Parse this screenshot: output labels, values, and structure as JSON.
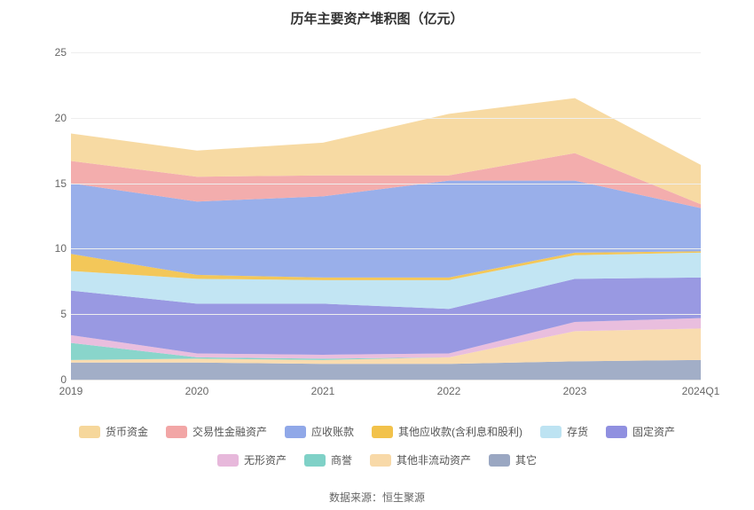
{
  "chart": {
    "type": "stacked-area",
    "title": "历年主要资产堆积图（亿元）",
    "title_fontsize": 15,
    "title_color": "#333333",
    "background_color": "#ffffff",
    "grid_color": "#eeeeee",
    "axis_label_fontsize": 12,
    "axis_label_color": "#666666",
    "ylim": [
      0,
      25
    ],
    "ytick_step": 5,
    "yticks": [
      0,
      5,
      10,
      15,
      20,
      25
    ],
    "categories": [
      "2019",
      "2020",
      "2021",
      "2022",
      "2023",
      "2024Q1"
    ],
    "series": [
      {
        "name": "其它",
        "color": "#9aa7c2",
        "values": [
          1.3,
          1.3,
          1.2,
          1.2,
          1.4,
          1.5
        ]
      },
      {
        "name": "其他非流动资产",
        "color": "#f8d9a8",
        "values": [
          0.2,
          0.3,
          0.3,
          0.5,
          2.3,
          2.4
        ]
      },
      {
        "name": "商誉",
        "color": "#7fd1c7",
        "values": [
          1.3,
          0.1,
          0.1,
          0.0,
          0.0,
          0.0
        ]
      },
      {
        "name": "无形资产",
        "color": "#e7b8db",
        "values": [
          0.6,
          0.3,
          0.3,
          0.3,
          0.7,
          0.8
        ]
      },
      {
        "name": "固定资产",
        "color": "#9090e0",
        "values": [
          3.4,
          3.8,
          3.9,
          3.4,
          3.3,
          3.1
        ]
      },
      {
        "name": "存货",
        "color": "#bde3f2",
        "values": [
          1.5,
          1.9,
          1.8,
          2.2,
          1.8,
          1.9
        ]
      },
      {
        "name": "其他应收款(含利息和股利)",
        "color": "#f2c24b",
        "values": [
          1.3,
          0.3,
          0.2,
          0.2,
          0.2,
          0.1
        ]
      },
      {
        "name": "应收账款",
        "color": "#90a8e8",
        "values": [
          5.4,
          5.6,
          6.2,
          7.4,
          5.5,
          3.3
        ]
      },
      {
        "name": "交易性金融资产",
        "color": "#f2a6a6",
        "values": [
          1.7,
          1.9,
          1.6,
          0.4,
          2.1,
          0.3
        ]
      },
      {
        "name": "货币资金",
        "color": "#f6d79b",
        "values": [
          2.1,
          2.0,
          2.5,
          4.7,
          4.2,
          3.0
        ]
      }
    ],
    "legend_order": [
      "货币资金",
      "交易性金融资产",
      "应收账款",
      "其他应收款(含利息和股利)",
      "存货",
      "固定资产",
      "无形资产",
      "商誉",
      "其他非流动资产",
      "其它"
    ],
    "legend_fontsize": 12,
    "legend_swatch_w": 24,
    "legend_swatch_h": 14,
    "source_label": "数据来源：恒生聚源",
    "source_fontsize": 12,
    "source_color": "#666666"
  }
}
